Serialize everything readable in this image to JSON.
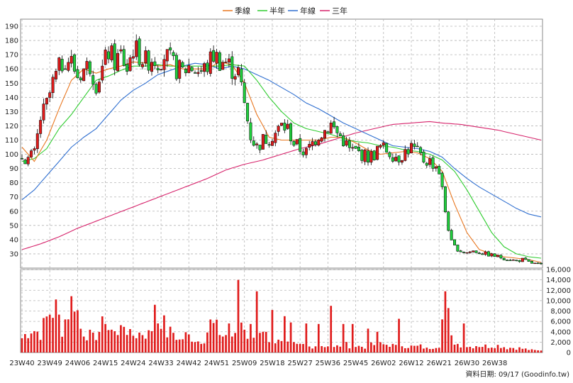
{
  "chart_data": {
    "type": "candlestick",
    "legend": [
      {
        "name": "季線",
        "color": "#e8761e"
      },
      {
        "name": "半年",
        "color": "#2ecc2e"
      },
      {
        "name": "年線",
        "color": "#2f6fd0"
      },
      {
        "name": "三年",
        "color": "#d6236b"
      }
    ],
    "legend_position": "top-center",
    "grid": true,
    "price_axis": {
      "ylim": [
        20,
        195
      ],
      "ticks": [
        30,
        40,
        50,
        60,
        70,
        80,
        90,
        100,
        110,
        120,
        130,
        140,
        150,
        160,
        170,
        180,
        190
      ]
    },
    "volume_axis": {
      "ylim": [
        0,
        16000
      ],
      "ticks": [
        0,
        2000,
        4000,
        6000,
        8000,
        10000,
        12000,
        14000,
        16000
      ],
      "tick_labels": [
        "0",
        "2,000",
        "4,000",
        "6,000",
        "8,000",
        "10,000",
        "12,000",
        "14,000",
        "16,000"
      ]
    },
    "x_labels": [
      "23W40",
      "23W49",
      "24W06",
      "24W15",
      "24W24",
      "24W33",
      "24W42",
      "24W51",
      "25W09",
      "25W18",
      "25W27",
      "25W36",
      "25W45",
      "26W02",
      "26W12",
      "26W21",
      "26W30",
      "26W38"
    ],
    "x_label_every": 9,
    "close_anchors": [
      [
        0,
        98
      ],
      [
        2,
        97
      ],
      [
        4,
        100
      ],
      [
        6,
        125
      ],
      [
        8,
        135
      ],
      [
        10,
        150
      ],
      [
        12,
        160
      ],
      [
        14,
        168
      ],
      [
        16,
        165
      ],
      [
        18,
        155
      ],
      [
        20,
        160
      ],
      [
        22,
        163
      ],
      [
        24,
        150
      ],
      [
        26,
        160
      ],
      [
        28,
        172
      ],
      [
        30,
        165
      ],
      [
        32,
        170
      ],
      [
        34,
        160
      ],
      [
        36,
        175
      ],
      [
        38,
        170
      ],
      [
        40,
        165
      ],
      [
        42,
        168
      ],
      [
        44,
        166
      ],
      [
        46,
        170
      ],
      [
        48,
        165
      ],
      [
        50,
        160
      ],
      [
        52,
        158
      ],
      [
        54,
        162
      ],
      [
        56,
        160
      ],
      [
        58,
        158
      ],
      [
        60,
        162
      ],
      [
        62,
        170
      ],
      [
        64,
        166
      ],
      [
        66,
        165
      ],
      [
        68,
        160
      ],
      [
        70,
        158
      ],
      [
        72,
        135
      ],
      [
        74,
        113
      ],
      [
        76,
        105
      ],
      [
        78,
        110
      ],
      [
        80,
        112
      ],
      [
        82,
        115
      ],
      [
        84,
        120
      ],
      [
        86,
        118
      ],
      [
        88,
        108
      ],
      [
        90,
        104
      ],
      [
        92,
        101
      ],
      [
        94,
        108
      ],
      [
        96,
        114
      ],
      [
        98,
        117
      ],
      [
        100,
        121
      ],
      [
        102,
        115
      ],
      [
        104,
        110
      ],
      [
        106,
        103
      ],
      [
        108,
        102
      ],
      [
        110,
        100
      ],
      [
        112,
        98
      ],
      [
        114,
        100
      ],
      [
        116,
        105
      ],
      [
        118,
        103
      ],
      [
        120,
        100
      ],
      [
        122,
        98
      ],
      [
        124,
        102
      ],
      [
        126,
        105
      ],
      [
        128,
        101
      ],
      [
        130,
        96
      ],
      [
        132,
        95
      ],
      [
        134,
        92
      ],
      [
        135,
        88
      ],
      [
        136,
        75
      ],
      [
        137,
        60
      ],
      [
        138,
        48
      ],
      [
        139,
        38
      ],
      [
        140,
        35
      ],
      [
        142,
        32
      ],
      [
        144,
        31
      ],
      [
        146,
        32
      ],
      [
        148,
        31
      ],
      [
        150,
        30
      ],
      [
        152,
        29
      ],
      [
        154,
        28
      ],
      [
        156,
        27
      ],
      [
        158,
        26
      ],
      [
        160,
        25
      ],
      [
        162,
        26
      ],
      [
        164,
        24
      ],
      [
        166,
        23
      ],
      [
        168,
        22
      ]
    ],
    "ma_quarter_anchors": [
      [
        0,
        105
      ],
      [
        4,
        95
      ],
      [
        8,
        110
      ],
      [
        12,
        132
      ],
      [
        16,
        152
      ],
      [
        20,
        160
      ],
      [
        24,
        157
      ],
      [
        28,
        160
      ],
      [
        32,
        162
      ],
      [
        36,
        165
      ],
      [
        40,
        164
      ],
      [
        44,
        162
      ],
      [
        48,
        163
      ],
      [
        52,
        160
      ],
      [
        56,
        160
      ],
      [
        60,
        160
      ],
      [
        64,
        165
      ],
      [
        68,
        163
      ],
      [
        72,
        150
      ],
      [
        76,
        128
      ],
      [
        80,
        112
      ],
      [
        84,
        110
      ],
      [
        88,
        110
      ],
      [
        92,
        110
      ],
      [
        96,
        110
      ],
      [
        100,
        112
      ],
      [
        104,
        112
      ],
      [
        108,
        108
      ],
      [
        112,
        103
      ],
      [
        116,
        100
      ],
      [
        120,
        101
      ],
      [
        124,
        102
      ],
      [
        128,
        101
      ],
      [
        132,
        97
      ],
      [
        136,
        88
      ],
      [
        140,
        65
      ],
      [
        144,
        45
      ],
      [
        148,
        33
      ],
      [
        152,
        30
      ],
      [
        156,
        28
      ],
      [
        160,
        27
      ],
      [
        164,
        26
      ],
      [
        168,
        24
      ]
    ],
    "ma_half_anchors": [
      [
        0,
        95
      ],
      [
        4,
        97
      ],
      [
        8,
        104
      ],
      [
        12,
        118
      ],
      [
        16,
        128
      ],
      [
        20,
        140
      ],
      [
        24,
        152
      ],
      [
        28,
        155
      ],
      [
        32,
        159
      ],
      [
        36,
        162
      ],
      [
        40,
        162
      ],
      [
        44,
        163
      ],
      [
        48,
        162
      ],
      [
        52,
        162
      ],
      [
        56,
        162
      ],
      [
        60,
        162
      ],
      [
        64,
        162
      ],
      [
        68,
        163
      ],
      [
        72,
        162
      ],
      [
        76,
        152
      ],
      [
        80,
        140
      ],
      [
        84,
        130
      ],
      [
        88,
        122
      ],
      [
        92,
        118
      ],
      [
        96,
        116
      ],
      [
        100,
        114
      ],
      [
        104,
        111
      ],
      [
        108,
        109
      ],
      [
        112,
        108
      ],
      [
        116,
        106
      ],
      [
        120,
        105
      ],
      [
        124,
        103
      ],
      [
        128,
        102
      ],
      [
        132,
        100
      ],
      [
        136,
        96
      ],
      [
        140,
        88
      ],
      [
        144,
        75
      ],
      [
        148,
        60
      ],
      [
        152,
        45
      ],
      [
        156,
        35
      ],
      [
        160,
        30
      ],
      [
        164,
        28
      ],
      [
        168,
        27
      ]
    ],
    "ma_year_anchors": [
      [
        0,
        68
      ],
      [
        4,
        75
      ],
      [
        8,
        85
      ],
      [
        12,
        95
      ],
      [
        16,
        105
      ],
      [
        20,
        112
      ],
      [
        24,
        118
      ],
      [
        28,
        128
      ],
      [
        32,
        138
      ],
      [
        36,
        145
      ],
      [
        40,
        150
      ],
      [
        44,
        156
      ],
      [
        48,
        159
      ],
      [
        52,
        162
      ],
      [
        56,
        164
      ],
      [
        60,
        163
      ],
      [
        64,
        160
      ],
      [
        68,
        162
      ],
      [
        72,
        160
      ],
      [
        76,
        156
      ],
      [
        80,
        152
      ],
      [
        84,
        147
      ],
      [
        88,
        142
      ],
      [
        92,
        136
      ],
      [
        96,
        132
      ],
      [
        100,
        127
      ],
      [
        104,
        122
      ],
      [
        108,
        118
      ],
      [
        112,
        114
      ],
      [
        116,
        110
      ],
      [
        120,
        106
      ],
      [
        124,
        105
      ],
      [
        128,
        104
      ],
      [
        132,
        102
      ],
      [
        136,
        98
      ],
      [
        140,
        90
      ],
      [
        144,
        83
      ],
      [
        148,
        77
      ],
      [
        152,
        72
      ],
      [
        156,
        67
      ],
      [
        160,
        62
      ],
      [
        164,
        58
      ],
      [
        168,
        56
      ]
    ],
    "ma_3year_anchors": [
      [
        0,
        33
      ],
      [
        6,
        37
      ],
      [
        12,
        42
      ],
      [
        18,
        48
      ],
      [
        24,
        53
      ],
      [
        30,
        58
      ],
      [
        36,
        63
      ],
      [
        42,
        68
      ],
      [
        48,
        73
      ],
      [
        54,
        78
      ],
      [
        60,
        83
      ],
      [
        66,
        89
      ],
      [
        72,
        93
      ],
      [
        78,
        96
      ],
      [
        84,
        100
      ],
      [
        90,
        104
      ],
      [
        96,
        107
      ],
      [
        102,
        111
      ],
      [
        108,
        115
      ],
      [
        114,
        118
      ],
      [
        120,
        121
      ],
      [
        126,
        122
      ],
      [
        132,
        123
      ],
      [
        136,
        122
      ],
      [
        142,
        121
      ],
      [
        148,
        119
      ],
      [
        154,
        117
      ],
      [
        160,
        114
      ],
      [
        168,
        110
      ]
    ],
    "volume_anchors": [
      [
        0,
        3000
      ],
      [
        3,
        5000
      ],
      [
        6,
        4000
      ],
      [
        9,
        8500
      ],
      [
        11,
        9000
      ],
      [
        13,
        5000
      ],
      [
        15,
        8800
      ],
      [
        17,
        11800
      ],
      [
        19,
        5000
      ],
      [
        21,
        4000
      ],
      [
        23,
        3000
      ],
      [
        25,
        4500
      ],
      [
        27,
        6500
      ],
      [
        29,
        6000
      ],
      [
        31,
        3500
      ],
      [
        33,
        6500
      ],
      [
        35,
        3500
      ],
      [
        37,
        3800
      ],
      [
        39,
        4200
      ],
      [
        41,
        3800
      ],
      [
        43,
        6300
      ],
      [
        45,
        7500
      ],
      [
        47,
        4000
      ],
      [
        49,
        4200
      ],
      [
        51,
        2500
      ],
      [
        53,
        3500
      ],
      [
        55,
        3200
      ],
      [
        57,
        2400
      ],
      [
        59,
        3000
      ],
      [
        61,
        6000
      ],
      [
        63,
        5000
      ],
      [
        65,
        3500
      ],
      [
        67,
        3800
      ],
      [
        69,
        3200
      ],
      [
        71,
        6500
      ],
      [
        73,
        3000
      ],
      [
        75,
        3800
      ],
      [
        77,
        5200
      ],
      [
        79,
        3600
      ],
      [
        81,
        2500
      ],
      [
        83,
        2200
      ],
      [
        85,
        1500
      ],
      [
        87,
        1800
      ],
      [
        89,
        1400
      ],
      [
        91,
        1600
      ],
      [
        93,
        1200
      ],
      [
        95,
        1500
      ],
      [
        97,
        1500
      ],
      [
        99,
        1400
      ],
      [
        101,
        1000
      ],
      [
        103,
        1500
      ],
      [
        105,
        1600
      ],
      [
        107,
        1300
      ],
      [
        109,
        1300
      ],
      [
        111,
        1200
      ],
      [
        113,
        1500
      ],
      [
        115,
        1700
      ],
      [
        117,
        1600
      ],
      [
        119,
        1700
      ],
      [
        121,
        1200
      ],
      [
        123,
        1600
      ],
      [
        125,
        1300
      ],
      [
        127,
        1200
      ],
      [
        129,
        1300
      ],
      [
        131,
        800
      ],
      [
        133,
        1200
      ],
      [
        135,
        1600
      ],
      [
        137,
        11800
      ],
      [
        139,
        2800
      ],
      [
        141,
        1800
      ],
      [
        143,
        1500
      ],
      [
        145,
        1200
      ],
      [
        147,
        1500
      ],
      [
        149,
        1400
      ],
      [
        151,
        1300
      ],
      [
        153,
        1500
      ],
      [
        155,
        1400
      ],
      [
        157,
        1000
      ],
      [
        159,
        1000
      ],
      [
        161,
        900
      ],
      [
        163,
        700
      ],
      [
        165,
        500
      ],
      [
        167,
        400
      ],
      [
        168,
        500
      ]
    ],
    "volume_spikes": [
      [
        27,
        5500
      ],
      [
        29,
        4400
      ],
      [
        43,
        9200
      ],
      [
        67,
        5600
      ],
      [
        70,
        14000
      ],
      [
        72,
        4400
      ],
      [
        74,
        5500
      ],
      [
        76,
        11800
      ],
      [
        78,
        4000
      ],
      [
        81,
        8200
      ],
      [
        85,
        7000
      ],
      [
        87,
        5800
      ],
      [
        92,
        5600
      ],
      [
        96,
        5500
      ],
      [
        100,
        9000
      ],
      [
        104,
        5500
      ],
      [
        107,
        5500
      ],
      [
        112,
        4600
      ],
      [
        115,
        4000
      ],
      [
        122,
        6500
      ],
      [
        137,
        11800
      ],
      [
        143,
        5600
      ]
    ],
    "n_bars": 169,
    "footer": "資料日期: 09/17  (Goodinfo.tw)"
  }
}
